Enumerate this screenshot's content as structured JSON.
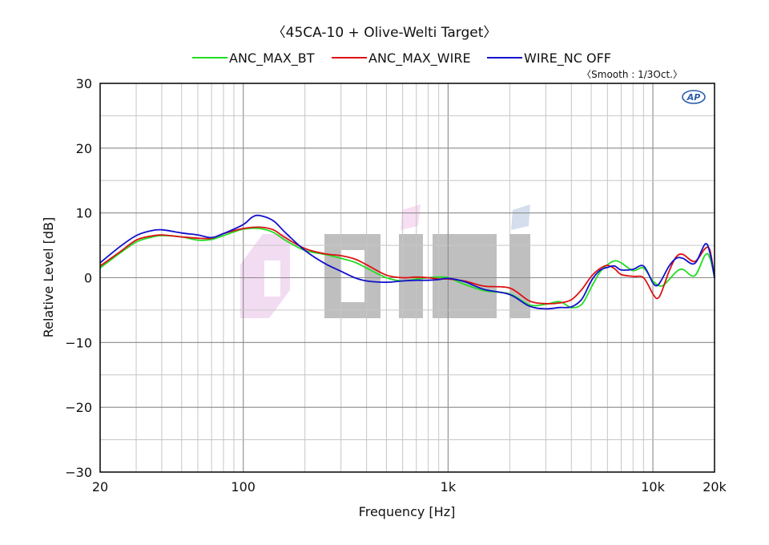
{
  "chart_data": {
    "type": "line",
    "title": "〈45CA-10 + Olive-Welti Target〉",
    "subtitle": "〈Smooth : 1/3Oct.〉",
    "xlabel": "Frequency [Hz]",
    "ylabel": "Relative Level [dB]",
    "x_scale": "log",
    "xlim": [
      20,
      20000
    ],
    "ylim": [
      -30,
      30
    ],
    "grid": true,
    "legend_position": "top-center",
    "x_ticks": [
      {
        "value": 20,
        "label": "20"
      },
      {
        "value": 100,
        "label": "100"
      },
      {
        "value": 1000,
        "label": "1k"
      },
      {
        "value": 10000,
        "label": "10k"
      },
      {
        "value": 20000,
        "label": "20k"
      }
    ],
    "y_ticks": [
      {
        "value": 30,
        "label": "30"
      },
      {
        "value": 20,
        "label": "20"
      },
      {
        "value": 10,
        "label": "10"
      },
      {
        "value": 0,
        "label": "0"
      },
      {
        "value": -10,
        "label": "−10"
      },
      {
        "value": -20,
        "label": "−20"
      },
      {
        "value": -30,
        "label": "−30"
      }
    ],
    "series": [
      {
        "name": "ANC_MAX_BT",
        "color": "#22dd22",
        "points": [
          [
            20,
            1.5
          ],
          [
            25,
            3.8
          ],
          [
            30,
            5.5
          ],
          [
            35,
            6.2
          ],
          [
            40,
            6.5
          ],
          [
            50,
            6.3
          ],
          [
            60,
            5.8
          ],
          [
            70,
            5.9
          ],
          [
            80,
            6.5
          ],
          [
            100,
            7.5
          ],
          [
            120,
            7.6
          ],
          [
            140,
            7
          ],
          [
            160,
            5.8
          ],
          [
            200,
            4.2
          ],
          [
            250,
            3.6
          ],
          [
            300,
            3
          ],
          [
            350,
            2.4
          ],
          [
            400,
            1.5
          ],
          [
            500,
            0
          ],
          [
            600,
            -0.5
          ],
          [
            700,
            -0.2
          ],
          [
            800,
            0
          ],
          [
            900,
            0.1
          ],
          [
            1000,
            0
          ],
          [
            1200,
            -1
          ],
          [
            1500,
            -2
          ],
          [
            2000,
            -2.5
          ],
          [
            2500,
            -4.2
          ],
          [
            3000,
            -4.1
          ],
          [
            3500,
            -3.7
          ],
          [
            4000,
            -4.6
          ],
          [
            4500,
            -4.1
          ],
          [
            5000,
            -1.5
          ],
          [
            5500,
            0.8
          ],
          [
            6000,
            2
          ],
          [
            6500,
            2.6
          ],
          [
            7000,
            2.3
          ],
          [
            8000,
            1.1
          ],
          [
            9000,
            1.5
          ],
          [
            10000,
            -0.5
          ],
          [
            11000,
            -1.3
          ],
          [
            12000,
            -0.3
          ],
          [
            13000,
            0.9
          ],
          [
            14000,
            1.3
          ],
          [
            16000,
            0.3
          ],
          [
            18000,
            3.5
          ],
          [
            19000,
            3
          ],
          [
            20000,
            0
          ]
        ]
      },
      {
        "name": "ANC_MAX_WIRE",
        "color": "#dd1111",
        "points": [
          [
            20,
            1.8
          ],
          [
            25,
            4
          ],
          [
            30,
            5.8
          ],
          [
            35,
            6.4
          ],
          [
            40,
            6.6
          ],
          [
            50,
            6.3
          ],
          [
            60,
            6.1
          ],
          [
            70,
            6.1
          ],
          [
            80,
            6.8
          ],
          [
            100,
            7.6
          ],
          [
            120,
            7.8
          ],
          [
            140,
            7.4
          ],
          [
            160,
            6.2
          ],
          [
            200,
            4.5
          ],
          [
            250,
            3.7
          ],
          [
            300,
            3.4
          ],
          [
            350,
            2.9
          ],
          [
            400,
            2
          ],
          [
            500,
            0.4
          ],
          [
            600,
            0
          ],
          [
            700,
            0.1
          ],
          [
            800,
            0
          ],
          [
            900,
            -0.2
          ],
          [
            1000,
            -0.2
          ],
          [
            1200,
            -0.5
          ],
          [
            1500,
            -1.3
          ],
          [
            2000,
            -1.6
          ],
          [
            2500,
            -3.6
          ],
          [
            3000,
            -4
          ],
          [
            3500,
            -3.9
          ],
          [
            4000,
            -3.4
          ],
          [
            4500,
            -1.8
          ],
          [
            5000,
            0.2
          ],
          [
            5500,
            1.4
          ],
          [
            6000,
            1.9
          ],
          [
            6500,
            1.4
          ],
          [
            7000,
            0.5
          ],
          [
            8000,
            0.2
          ],
          [
            9000,
            0
          ],
          [
            10000,
            -2.5
          ],
          [
            10500,
            -3.2
          ],
          [
            11000,
            -2.3
          ],
          [
            12000,
            1
          ],
          [
            13000,
            3.2
          ],
          [
            14000,
            3.6
          ],
          [
            16000,
            2.5
          ],
          [
            18000,
            4.5
          ],
          [
            19000,
            4.2
          ],
          [
            20000,
            0
          ]
        ]
      },
      {
        "name": "WIRE_NC OFF",
        "color": "#1111cc",
        "points": [
          [
            20,
            2.3
          ],
          [
            25,
            4.8
          ],
          [
            30,
            6.5
          ],
          [
            35,
            7.2
          ],
          [
            40,
            7.4
          ],
          [
            50,
            6.9
          ],
          [
            60,
            6.6
          ],
          [
            70,
            6.2
          ],
          [
            80,
            6.8
          ],
          [
            100,
            8.2
          ],
          [
            110,
            9.3
          ],
          [
            120,
            9.6
          ],
          [
            140,
            8.8
          ],
          [
            160,
            7
          ],
          [
            200,
            4.2
          ],
          [
            250,
            2.2
          ],
          [
            300,
            1
          ],
          [
            350,
            0
          ],
          [
            400,
            -0.5
          ],
          [
            500,
            -0.7
          ],
          [
            600,
            -0.5
          ],
          [
            700,
            -0.4
          ],
          [
            800,
            -0.4
          ],
          [
            900,
            -0.3
          ],
          [
            1000,
            -0.1
          ],
          [
            1200,
            -0.6
          ],
          [
            1500,
            -1.8
          ],
          [
            2000,
            -2.6
          ],
          [
            2500,
            -4.4
          ],
          [
            3000,
            -4.8
          ],
          [
            3500,
            -4.6
          ],
          [
            4000,
            -4.5
          ],
          [
            4500,
            -3.3
          ],
          [
            5000,
            -0.5
          ],
          [
            5500,
            1.1
          ],
          [
            6000,
            1.6
          ],
          [
            6500,
            1.8
          ],
          [
            7000,
            1.2
          ],
          [
            8000,
            1.3
          ],
          [
            9000,
            1.8
          ],
          [
            10000,
            -0.8
          ],
          [
            10500,
            -1.2
          ],
          [
            11000,
            -0.4
          ],
          [
            12000,
            1.8
          ],
          [
            13000,
            3
          ],
          [
            14000,
            3
          ],
          [
            16000,
            2.2
          ],
          [
            18000,
            5.2
          ],
          [
            19000,
            3.8
          ],
          [
            20000,
            0
          ]
        ]
      }
    ]
  }
}
